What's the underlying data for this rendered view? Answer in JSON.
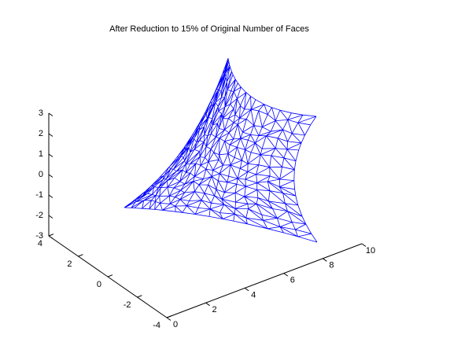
{
  "chart_data": {
    "type": "mesh3d",
    "title": "After Reduction to 15% of Original Number of Faces",
    "xlim": [
      0,
      10
    ],
    "xticks": [
      0,
      2,
      4,
      6,
      8,
      10
    ],
    "ylim": [
      -4,
      4
    ],
    "yticks": [
      -4,
      -2,
      0,
      2,
      4
    ],
    "zlim": [
      -3,
      3
    ],
    "zticks": [
      -3,
      -2,
      -1,
      0,
      1,
      2,
      3
    ],
    "color": "#0000ff"
  }
}
